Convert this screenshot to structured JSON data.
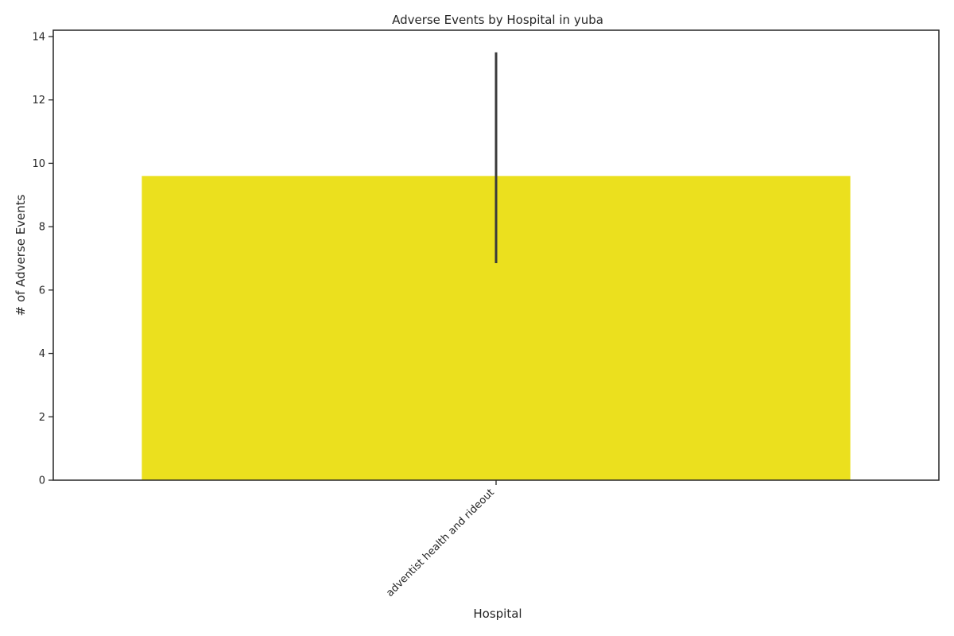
{
  "chart_data": {
    "type": "bar",
    "title": "Adverse Events by Hospital in yuba",
    "xlabel": "Hospital",
    "ylabel": "# of Adverse Events",
    "categories": [
      "adventist health and rideout"
    ],
    "values": [
      9.6
    ],
    "error_low": [
      6.85
    ],
    "error_high": [
      13.5
    ],
    "ylim": [
      0,
      14.2
    ],
    "yticks": [
      0,
      2,
      4,
      6,
      8,
      10,
      12,
      14
    ],
    "bar_color": "#ebe01e",
    "errorbar_color": "#3b3b3b",
    "grid": false,
    "legend": "none"
  }
}
